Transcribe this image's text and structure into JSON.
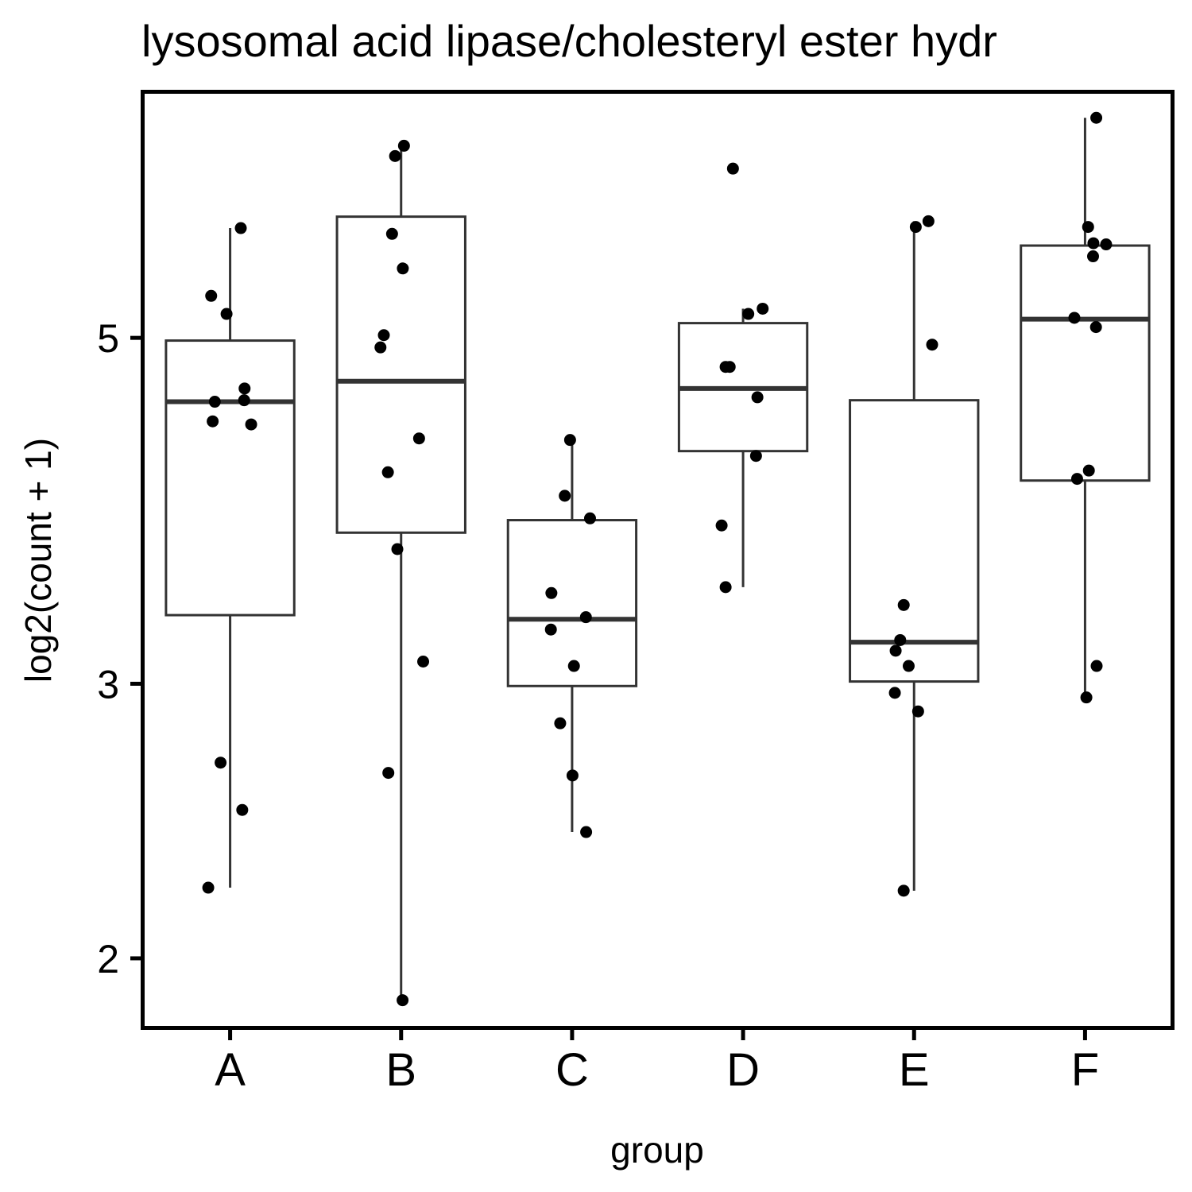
{
  "chart_data": {
    "type": "boxplot",
    "title": "lysosomal acid lipase/cholesteryl ester hydr",
    "xlabel": "group",
    "ylabel": "log2(count + 1)",
    "y_scale": "log",
    "ylim": [
      1.81,
      7.17
    ],
    "y_ticks": [
      2,
      3,
      5
    ],
    "grid": false,
    "legend": "none",
    "categories": [
      "A",
      "B",
      "C",
      "D",
      "E",
      "F"
    ],
    "groups": [
      {
        "name": "A",
        "box": {
          "whisker_low": 2.22,
          "q1": 3.32,
          "median": 4.55,
          "q3": 4.98,
          "whisker_high": 5.88
        },
        "points": [
          5.88,
          5.32,
          5.18,
          4.64,
          4.55,
          4.56,
          4.42,
          4.4,
          2.67,
          2.49,
          2.22
        ]
      },
      {
        "name": "B",
        "box": {
          "whisker_low": 1.88,
          "q1": 3.75,
          "median": 4.69,
          "q3": 5.98,
          "whisker_high": 6.62
        },
        "points": [
          6.64,
          6.54,
          5.83,
          5.54,
          5.02,
          4.93,
          4.31,
          4.1,
          3.66,
          3.1,
          2.63,
          1.88
        ]
      },
      {
        "name": "C",
        "box": {
          "whisker_low": 2.41,
          "q1": 2.99,
          "median": 3.3,
          "q3": 3.82,
          "whisker_high": 4.3
        },
        "points": [
          4.3,
          3.96,
          3.83,
          3.43,
          3.31,
          3.25,
          3.08,
          2.83,
          2.62,
          2.41
        ]
      },
      {
        "name": "D",
        "box": {
          "whisker_low": 3.46,
          "q1": 4.23,
          "median": 4.64,
          "q3": 5.11,
          "whisker_high": 5.22
        },
        "points": [
          6.42,
          5.22,
          5.18,
          4.79,
          4.79,
          4.58,
          4.2,
          3.79,
          3.46
        ]
      },
      {
        "name": "E",
        "box": {
          "whisker_low": 2.21,
          "q1": 3.01,
          "median": 3.19,
          "q3": 4.56,
          "whisker_high": 5.94
        },
        "points": [
          5.94,
          5.89,
          4.95,
          3.37,
          3.2,
          3.15,
          3.08,
          2.96,
          2.88,
          2.21
        ]
      },
      {
        "name": "F",
        "box": {
          "whisker_low": 2.94,
          "q1": 4.05,
          "median": 5.14,
          "q3": 5.73,
          "whisker_high": 6.92
        },
        "points": [
          6.92,
          5.89,
          5.75,
          5.74,
          5.64,
          5.15,
          5.08,
          4.11,
          4.06,
          3.08,
          2.94
        ]
      }
    ]
  }
}
